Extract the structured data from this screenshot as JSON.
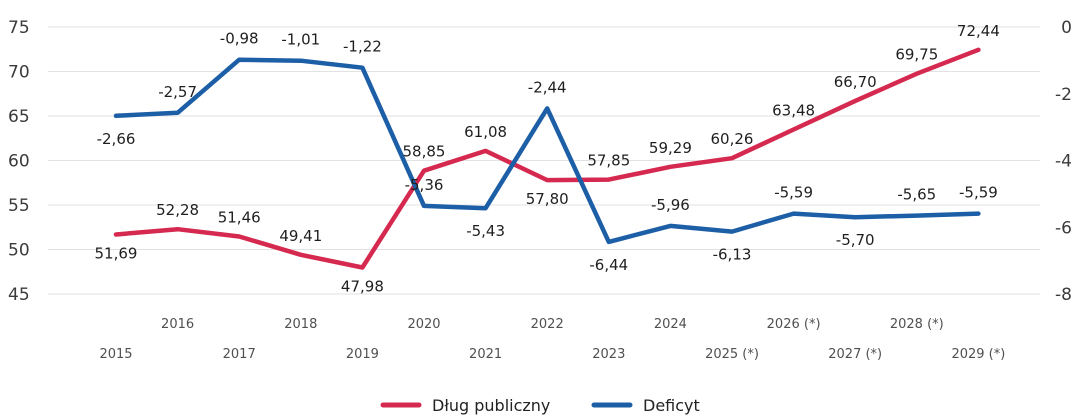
{
  "chart_data": {
    "type": "line",
    "title": "",
    "x": [
      "2015",
      "2016",
      "2017",
      "2018",
      "2019",
      "2020",
      "2021",
      "2022",
      "2023",
      "2024",
      "2025 (*)",
      "2026 (*)",
      "2027 (*)",
      "2028 (*)",
      "2029 (*)"
    ],
    "series": [
      {
        "name": "Dług publiczny",
        "axis": "left",
        "color": "#d5294f",
        "values": [
          51.69,
          52.28,
          51.46,
          49.41,
          47.98,
          58.85,
          61.08,
          57.8,
          57.85,
          59.29,
          60.26,
          63.48,
          66.7,
          69.75,
          72.44
        ],
        "labels": [
          "51,69",
          "52,28",
          "51,46",
          "49,41",
          "47,98",
          "58,85",
          "61,08",
          "57,80",
          "57,85",
          "59,29",
          "60,26",
          "63,48",
          "66,70",
          "69,75",
          "72,44"
        ]
      },
      {
        "name": "Deficyt",
        "axis": "right",
        "color": "#1d5fa6",
        "values": [
          -2.66,
          -2.57,
          -0.98,
          -1.01,
          -1.22,
          -5.36,
          -5.43,
          -2.44,
          -6.44,
          -5.96,
          -6.13,
          -5.59,
          -5.7,
          -5.65,
          -5.59
        ],
        "labels": [
          "-2,66",
          "-2,57",
          "-0,98",
          "-1,01",
          "-1,22",
          "-5,36",
          "-5,43",
          "-2,44",
          "-6,44",
          "-5,96",
          "-6,13",
          "-5,59",
          "-5,70",
          "-5,65",
          "-5,59"
        ]
      }
    ],
    "y_left": {
      "min": 45,
      "max": 75,
      "ticks": [
        "45",
        "50",
        "55",
        "60",
        "65",
        "70",
        "75"
      ]
    },
    "y_right": {
      "min": -8,
      "max": 0,
      "ticks": [
        "-8",
        "-6",
        "-4",
        "-2",
        "0"
      ]
    },
    "grid": true,
    "legend_position": "bottom-center",
    "x_tick_style": "alternating-rows"
  }
}
